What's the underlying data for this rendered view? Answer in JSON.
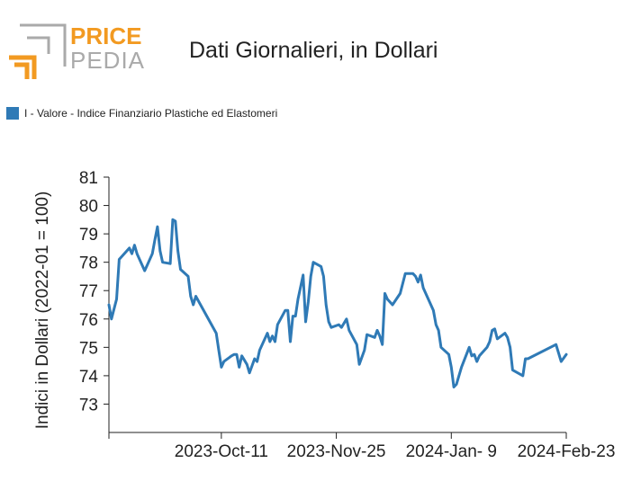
{
  "logo": {
    "word_top": "PRICE",
    "word_bottom": "PEDIA",
    "color_orange": "#f29a21",
    "color_gray": "#aaaaaa"
  },
  "chart_data": {
    "type": "line",
    "title": "Dati Giornalieri, in Dollari",
    "ylabel": "Indici in Dollari (2022-01 = 100)",
    "xlabel": "",
    "ylim": [
      72,
      81
    ],
    "yticks": [
      73,
      74,
      75,
      76,
      77,
      78,
      79,
      80,
      81
    ],
    "xlim": [
      "2023-08-28",
      "2024-02-23"
    ],
    "xticks": [
      "2023-10-11",
      "2023-11-25",
      "2024-01-09",
      "2024-02-23"
    ],
    "xtick_labels": [
      "2023-Oct-11",
      "2023-Nov-25",
      "2024-Jan- 9",
      "2024-Feb-23"
    ],
    "legend_position": "top-left",
    "color": "#2f7ab6",
    "series": [
      {
        "name": "I - Valore - Indice Finanziario Plastiche ed Elastomeri",
        "points": [
          [
            "2023-08-28",
            76.5
          ],
          [
            "2023-08-29",
            76.0
          ],
          [
            "2023-08-31",
            76.7
          ],
          [
            "2023-09-01",
            78.1
          ],
          [
            "2023-09-04",
            78.4
          ],
          [
            "2023-09-05",
            78.5
          ],
          [
            "2023-09-06",
            78.3
          ],
          [
            "2023-09-07",
            78.6
          ],
          [
            "2023-09-08",
            78.3
          ],
          [
            "2023-09-11",
            77.7
          ],
          [
            "2023-09-12",
            77.9
          ],
          [
            "2023-09-14",
            78.3
          ],
          [
            "2023-09-15",
            78.8
          ],
          [
            "2023-09-16",
            79.25
          ],
          [
            "2023-09-17",
            78.4
          ],
          [
            "2023-09-18",
            78.0
          ],
          [
            "2023-09-21",
            77.95
          ],
          [
            "2023-09-22",
            79.5
          ],
          [
            "2023-09-23",
            79.45
          ],
          [
            "2023-09-24",
            78.4
          ],
          [
            "2023-09-25",
            77.75
          ],
          [
            "2023-09-28",
            77.5
          ],
          [
            "2023-09-29",
            76.8
          ],
          [
            "2023-09-30",
            76.5
          ],
          [
            "2023-10-01",
            76.8
          ],
          [
            "2023-10-09",
            75.5
          ],
          [
            "2023-10-10",
            74.9
          ],
          [
            "2023-10-11",
            74.3
          ],
          [
            "2023-10-12",
            74.5
          ],
          [
            "2023-10-15",
            74.7
          ],
          [
            "2023-10-16",
            74.75
          ],
          [
            "2023-10-17",
            74.75
          ],
          [
            "2023-10-18",
            74.3
          ],
          [
            "2023-10-19",
            74.7
          ],
          [
            "2023-10-21",
            74.4
          ],
          [
            "2023-10-22",
            74.1
          ],
          [
            "2023-10-24",
            74.6
          ],
          [
            "2023-10-25",
            74.5
          ],
          [
            "2023-10-26",
            74.9
          ],
          [
            "2023-10-29",
            75.5
          ],
          [
            "2023-10-30",
            75.2
          ],
          [
            "2023-10-31",
            75.4
          ],
          [
            "2023-11-01",
            75.2
          ],
          [
            "2023-11-02",
            75.8
          ],
          [
            "2023-11-05",
            76.3
          ],
          [
            "2023-11-06",
            76.3
          ],
          [
            "2023-11-07",
            75.2
          ],
          [
            "2023-11-08",
            76.1
          ],
          [
            "2023-11-09",
            76.1
          ],
          [
            "2023-11-10",
            76.7
          ],
          [
            "2023-11-12",
            77.55
          ],
          [
            "2023-11-13",
            75.9
          ],
          [
            "2023-11-14",
            76.6
          ],
          [
            "2023-11-15",
            77.5
          ],
          [
            "2023-11-16",
            78.0
          ],
          [
            "2023-11-19",
            77.85
          ],
          [
            "2023-11-20",
            77.5
          ],
          [
            "2023-11-21",
            76.5
          ],
          [
            "2023-11-22",
            75.9
          ],
          [
            "2023-11-23",
            75.7
          ],
          [
            "2023-11-26",
            75.8
          ],
          [
            "2023-11-27",
            75.7
          ],
          [
            "2023-11-29",
            76.0
          ],
          [
            "2023-11-30",
            75.6
          ],
          [
            "2023-12-03",
            75.1
          ],
          [
            "2023-12-04",
            74.4
          ],
          [
            "2023-12-06",
            74.9
          ],
          [
            "2023-12-07",
            75.45
          ],
          [
            "2023-12-10",
            75.35
          ],
          [
            "2023-12-11",
            75.6
          ],
          [
            "2023-12-12",
            75.4
          ],
          [
            "2023-12-13",
            75.1
          ],
          [
            "2023-12-14",
            76.9
          ],
          [
            "2023-12-15",
            76.7
          ],
          [
            "2023-12-17",
            76.5
          ],
          [
            "2023-12-20",
            76.9
          ],
          [
            "2023-12-22",
            77.6
          ],
          [
            "2023-12-25",
            77.6
          ],
          [
            "2023-12-26",
            77.5
          ],
          [
            "2023-12-27",
            77.3
          ],
          [
            "2023-12-28",
            77.55
          ],
          [
            "2023-12-29",
            77.1
          ],
          [
            "2024-01-02",
            76.3
          ],
          [
            "2024-01-03",
            75.8
          ],
          [
            "2024-01-04",
            75.6
          ],
          [
            "2024-01-05",
            75.0
          ],
          [
            "2024-01-08",
            74.75
          ],
          [
            "2024-01-09",
            74.3
          ],
          [
            "2024-01-10",
            73.6
          ],
          [
            "2024-01-11",
            73.7
          ],
          [
            "2024-01-13",
            74.3
          ],
          [
            "2024-01-16",
            75.0
          ],
          [
            "2024-01-17",
            74.7
          ],
          [
            "2024-01-18",
            74.75
          ],
          [
            "2024-01-19",
            74.5
          ],
          [
            "2024-01-20",
            74.7
          ],
          [
            "2024-01-23",
            75.0
          ],
          [
            "2024-01-24",
            75.2
          ],
          [
            "2024-01-25",
            75.6
          ],
          [
            "2024-01-26",
            75.65
          ],
          [
            "2024-01-27",
            75.3
          ],
          [
            "2024-01-30",
            75.5
          ],
          [
            "2024-01-31",
            75.35
          ],
          [
            "2024-02-01",
            75.0
          ],
          [
            "2024-02-02",
            74.2
          ],
          [
            "2024-02-05",
            74.05
          ],
          [
            "2024-02-06",
            74.0
          ],
          [
            "2024-02-07",
            74.6
          ],
          [
            "2024-02-08",
            74.6
          ],
          [
            "2024-02-19",
            75.1
          ],
          [
            "2024-02-21",
            74.5
          ],
          [
            "2024-02-23",
            74.75
          ]
        ]
      }
    ]
  }
}
